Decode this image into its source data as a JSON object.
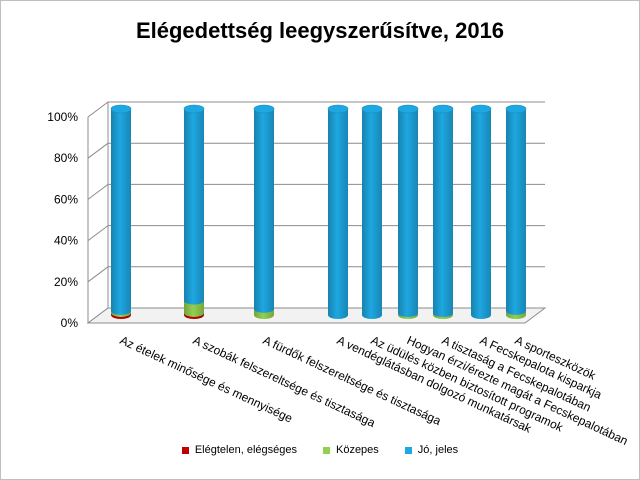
{
  "chart_data": {
    "type": "bar",
    "stacked": true,
    "three_d": true,
    "title": "Elégedettség leegyszerűsítve, 2016",
    "xlabel": "",
    "ylabel": "",
    "ylim": [
      0,
      100
    ],
    "yticks": [
      "0%",
      "20%",
      "40%",
      "60%",
      "80%",
      "100%"
    ],
    "grid": true,
    "legend_position": "bottom",
    "categories": [
      "Az ételek minősége és mennyisége",
      "A szobák felszereltsége és tisztasága",
      "A fürdők felszereltsége és tisztasága",
      "A vendéglátásban dolgozó munkatársak",
      "Az üdülés közben biztosított programok",
      "Hogyan érzi/érezte magát a Fecskepalotában",
      "A tisztaság a Fecskepalotában",
      "A Fecskepalota kisparkja",
      "A sporteszközök"
    ],
    "series": [
      {
        "name": "Elégtelen, elégséges",
        "color": "#c00000",
        "values": [
          1,
          1,
          0,
          0,
          0,
          0,
          0,
          0,
          0
        ]
      },
      {
        "name": "Közepes",
        "color": "#92d050",
        "values": [
          1,
          6,
          3,
          0,
          0,
          1,
          1,
          0,
          2
        ]
      },
      {
        "name": "Jó, jeles",
        "color": "#1ea7e1",
        "values": [
          98,
          93,
          97,
          100,
          100,
          99,
          99,
          100,
          98
        ]
      }
    ]
  }
}
